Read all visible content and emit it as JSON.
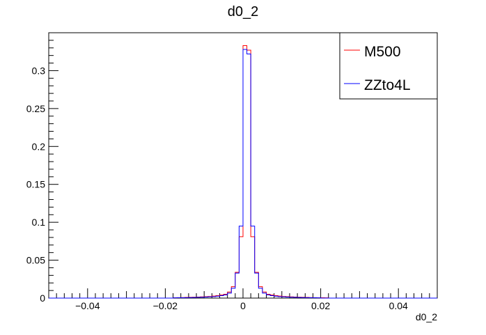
{
  "chart_data": {
    "type": "histogram",
    "title": "d0_2",
    "xlabel": "d0_2",
    "ylabel": "",
    "xlim": [
      -0.05,
      0.05
    ],
    "ylim": [
      0,
      0.35
    ],
    "x_ticks": [
      -0.04,
      -0.02,
      0,
      0.02,
      0.04
    ],
    "x_tick_labels": [
      "−0.04",
      "−0.02",
      "0",
      "0.02",
      "0.04"
    ],
    "y_ticks": [
      0,
      0.05,
      0.1,
      0.15,
      0.2,
      0.25,
      0.3
    ],
    "y_tick_labels": [
      "0",
      "0.05",
      "0.1",
      "0.15",
      "0.2",
      "0.25",
      "0.3"
    ],
    "bin_edges_range": [
      -0.05,
      0.05
    ],
    "n_bins": 100,
    "legend": {
      "placement": "top-right"
    },
    "series": [
      {
        "name": "M500",
        "color": "#ff0000",
        "nonzero_bins": {
          "-18": 0.0005,
          "-17": 0.0006,
          "-16": 0.0007,
          "-15": 0.0009,
          "-14": 0.001,
          "-13": 0.0012,
          "-12": 0.0014,
          "-11": 0.0016,
          "-10": 0.0018,
          "-9": 0.0022,
          "-8": 0.0026,
          "-7": 0.0032,
          "-6": 0.004,
          "-5": 0.005,
          "-4": 0.008,
          "-3": 0.015,
          "-2": 0.034,
          "-1": 0.081,
          "0": 0.333,
          "1": 0.327,
          "2": 0.081,
          "3": 0.034,
          "4": 0.015,
          "5": 0.008,
          "6": 0.005,
          "7": 0.004,
          "8": 0.0032,
          "9": 0.0026,
          "10": 0.0022,
          "11": 0.0018,
          "12": 0.0016,
          "13": 0.0014,
          "14": 0.0012,
          "15": 0.001,
          "16": 0.0009,
          "17": 0.0007,
          "18": 0.0006,
          "19": 0.0005,
          "20": 0.0004,
          "21": 0.0003
        }
      },
      {
        "name": "ZZto4L",
        "color": "#0000ff",
        "nonzero_bins": {
          "-18": 0.0003,
          "-17": 0.0004,
          "-16": 0.0005,
          "-15": 0.0006,
          "-14": 0.0007,
          "-13": 0.0008,
          "-12": 0.001,
          "-11": 0.0012,
          "-10": 0.0014,
          "-9": 0.0017,
          "-8": 0.002,
          "-7": 0.0025,
          "-6": 0.0032,
          "-5": 0.0042,
          "-4": 0.0065,
          "-3": 0.013,
          "-2": 0.033,
          "-1": 0.095,
          "0": 0.328,
          "1": 0.322,
          "2": 0.095,
          "3": 0.033,
          "4": 0.013,
          "5": 0.0065,
          "6": 0.0042,
          "7": 0.0032,
          "8": 0.0025,
          "9": 0.002,
          "10": 0.0017,
          "11": 0.0014,
          "12": 0.0012,
          "13": 0.001,
          "14": 0.0008,
          "15": 0.0007,
          "16": 0.0006,
          "17": 0.0005,
          "18": 0.0004,
          "19": 0.0003
        }
      }
    ]
  }
}
